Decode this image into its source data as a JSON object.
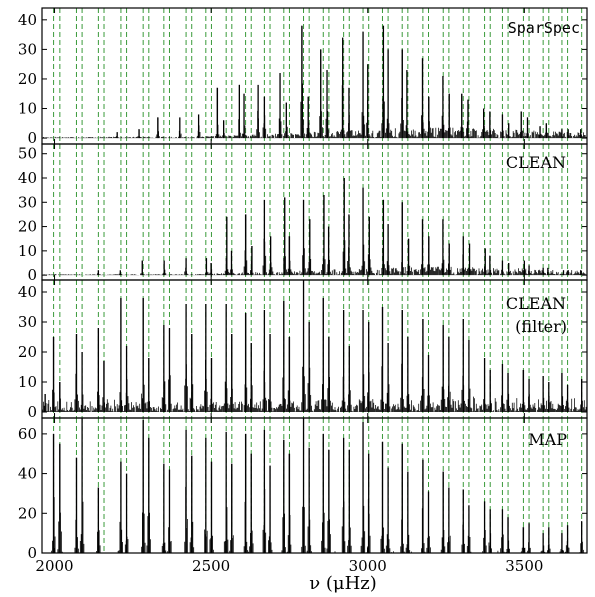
{
  "chart_data": {
    "type": "line",
    "xlabel": "ν (μHz)",
    "xlim": [
      1960,
      3700
    ],
    "xticks": [
      "2000",
      "2500",
      "3000",
      "3500"
    ],
    "guide_lines": {
      "color": "#3a9a3a",
      "x": [
        1997,
        2017,
        2070,
        2088,
        2140,
        2158,
        2212,
        2230,
        2283,
        2301,
        2349,
        2367,
        2420,
        2438,
        2483,
        2501,
        2548,
        2566,
        2610,
        2628,
        2670,
        2688,
        2732,
        2750,
        2795,
        2813,
        2858,
        2876,
        2923,
        2941,
        2985,
        3003,
        3047,
        3065,
        3110,
        3128,
        3176,
        3194,
        3241,
        3259,
        3305,
        3323,
        3373,
        3391,
        3430,
        3448,
        3497,
        3515,
        3560,
        3578,
        3620,
        3638,
        3683
      ]
    },
    "panels": [
      {
        "label": "SparSpec",
        "ylim": [
          -2,
          44
        ],
        "yticks": [
          "0",
          "10",
          "20",
          "30",
          "40"
        ],
        "series": [
          {
            "x": [
              2200,
              2270,
              2330,
              2400,
              2460,
              2520,
              2540,
              2590,
              2605,
              2650,
              2670,
              2720,
              2740,
              2790,
              2810,
              2850,
              2870,
              2920,
              2940,
              2985,
              3000,
              3050,
              3065,
              3110,
              3125,
              3175,
              3195,
              3240,
              3260,
              3300,
              3320,
              3370,
              3390,
              3430,
              3450,
              3490,
              3510,
              3550,
              3570,
              3620,
              3640,
              3680
            ],
            "y": [
              2,
              3,
              7,
              7,
              8,
              17,
              6,
              18,
              15,
              18,
              14,
              22,
              12,
              38,
              14,
              30,
              23,
              34,
              17,
              36,
              25,
              38,
              30,
              30,
              23,
              27,
              14,
              21,
              15,
              15,
              13,
              10,
              9,
              8,
              5,
              9,
              7,
              4,
              5,
              3,
              3,
              3
            ]
          }
        ]
      },
      {
        "label": "CLEAN",
        "ylim": [
          -2,
          54
        ],
        "yticks": [
          "0",
          "10",
          "20",
          "30",
          "40",
          "50"
        ],
        "series": [
          {
            "x": [
              2140,
              2210,
              2280,
              2350,
              2420,
              2485,
              2500,
              2550,
              2565,
              2610,
              2630,
              2670,
              2690,
              2735,
              2750,
              2795,
              2815,
              2860,
              2875,
              2925,
              2940,
              2985,
              3005,
              3050,
              3065,
              3110,
              3130,
              3175,
              3195,
              3240,
              3260,
              3305,
              3325,
              3375,
              3390,
              3430,
              3450,
              3500,
              3515,
              3560,
              3575,
              3625,
              3640,
              3680
            ],
            "y": [
              2,
              2,
              6,
              6,
              7,
              7,
              5,
              24,
              10,
              25,
              12,
              31,
              16,
              32,
              16,
              31,
              23,
              33,
              20,
              40,
              25,
              36,
              24,
              31,
              21,
              30,
              15,
              23,
              16,
              23,
              13,
              16,
              13,
              11,
              8,
              6,
              5,
              6,
              4,
              3,
              3,
              2,
              2,
              2
            ]
          }
        ]
      },
      {
        "label": "CLEAN",
        "label2": "(filter)",
        "ylim": [
          -2,
          44
        ],
        "yticks": [
          "0",
          "10",
          "20",
          "30",
          "40"
        ],
        "series": [
          {
            "x": [
              1970,
              1997,
              2017,
              2070,
              2088,
              2140,
              2158,
              2212,
              2230,
              2283,
              2301,
              2349,
              2367,
              2420,
              2438,
              2483,
              2501,
              2548,
              2566,
              2610,
              2628,
              2670,
              2688,
              2732,
              2750,
              2795,
              2813,
              2858,
              2876,
              2923,
              2941,
              2985,
              3003,
              3047,
              3065,
              3110,
              3128,
              3176,
              3194,
              3241,
              3259,
              3305,
              3323,
              3373,
              3391,
              3430,
              3448,
              3497,
              3515,
              3560,
              3578,
              3620,
              3638,
              3683
            ],
            "y": [
              6,
              25,
              10,
              26,
              20,
              28,
              17,
              38,
              22,
              38,
              18,
              29,
              28,
              36,
              26,
              36,
              18,
              36,
              26,
              33,
              23,
              34,
              26,
              37,
              25,
              44,
              30,
              38,
              25,
              34,
              22,
              34,
              30,
              35,
              23,
              34,
              25,
              31,
              19,
              29,
              25,
              31,
              24,
              18,
              14,
              16,
              13,
              14,
              11,
              12,
              10,
              13,
              9,
              11
            ]
          }
        ]
      },
      {
        "label": "MAP",
        "ylim": [
          0,
          68
        ],
        "yticks": [
          "0",
          "20",
          "40",
          "60"
        ],
        "series": [
          {
            "x": [
              1997,
              2017,
              2070,
              2088,
              2140,
              2212,
              2230,
              2283,
              2301,
              2349,
              2367,
              2420,
              2438,
              2483,
              2501,
              2548,
              2566,
              2610,
              2628,
              2670,
              2688,
              2732,
              2750,
              2795,
              2813,
              2858,
              2876,
              2923,
              2941,
              2985,
              3003,
              3047,
              3065,
              3110,
              3128,
              3176,
              3194,
              3241,
              3259,
              3305,
              3323,
              3373,
              3391,
              3430,
              3448,
              3497,
              3515,
              3560,
              3578,
              3620,
              3638,
              3683
            ],
            "y": [
              60,
              55,
              48,
              68,
              33,
              46,
              40,
              67,
              58,
              45,
              42,
              62,
              49,
              58,
              46,
              61,
              45,
              60,
              50,
              62,
              44,
              57,
              50,
              68,
              53,
              60,
              52,
              58,
              52,
              66,
              50,
              56,
              43,
              55,
              41,
              47,
              31,
              41,
              33,
              32,
              24,
              26,
              22,
              22,
              18,
              13,
              15,
              10,
              13,
              10,
              14,
              16
            ]
          }
        ]
      }
    ]
  }
}
